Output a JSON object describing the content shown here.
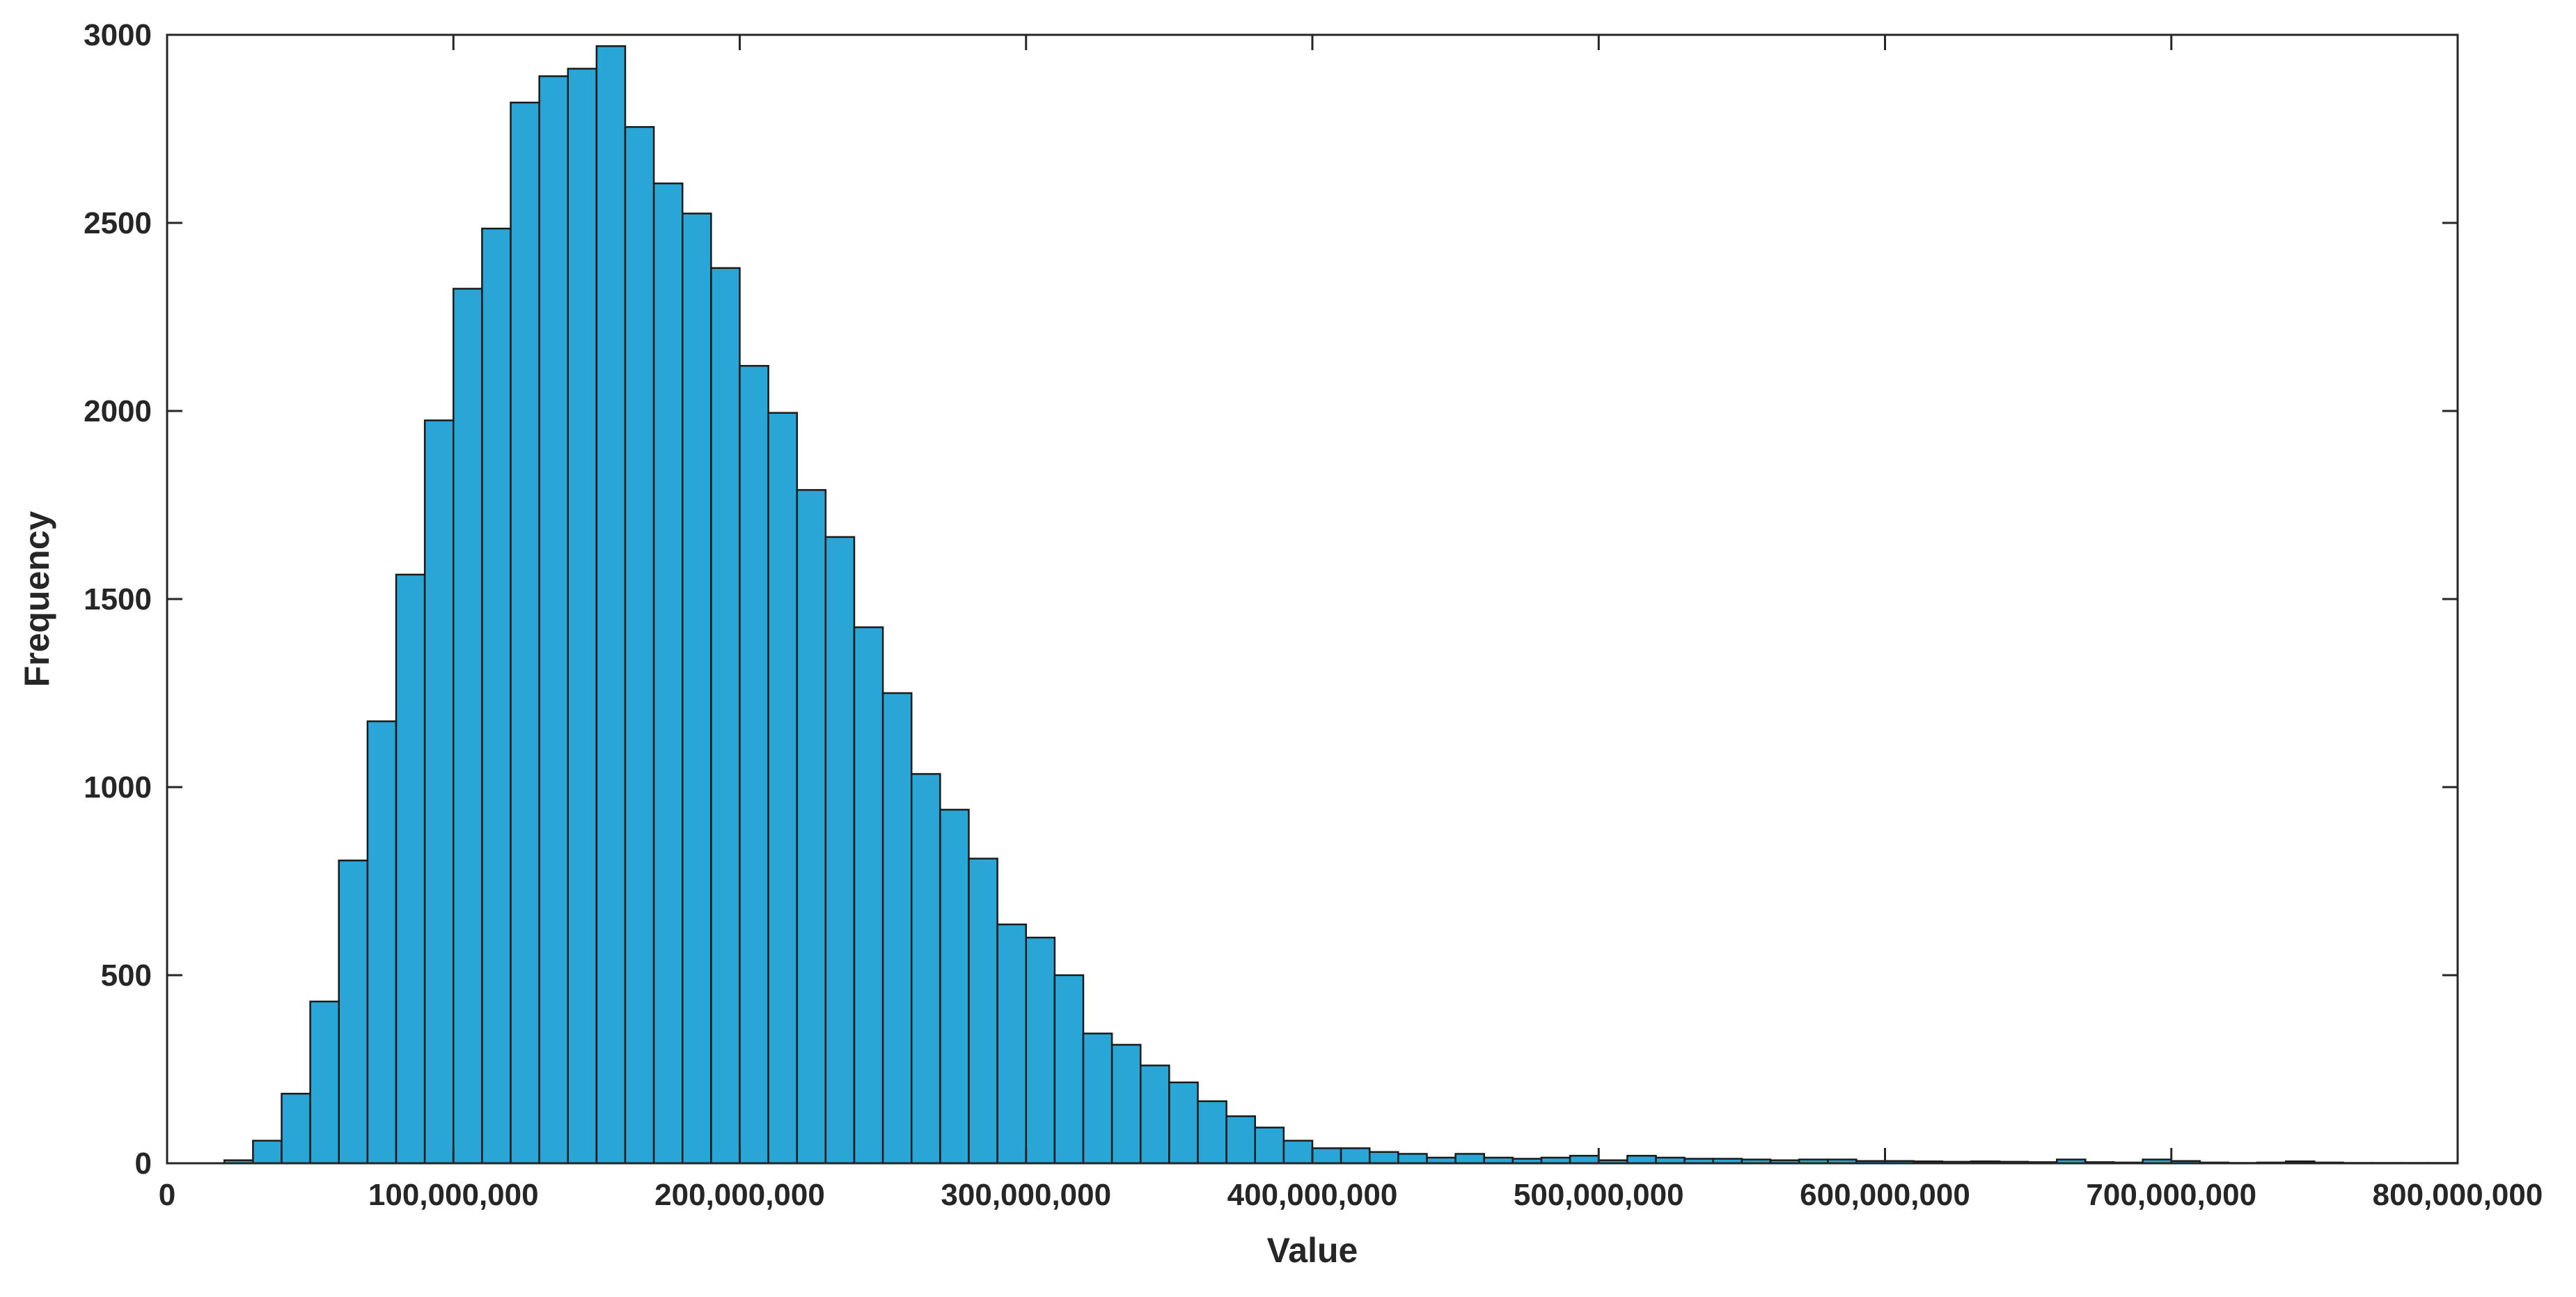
{
  "chart_data": {
    "type": "histogram",
    "title": "",
    "xlabel": "Value",
    "ylabel": "Frequency",
    "xlim": [
      0,
      800000000
    ],
    "ylim": [
      0,
      3000
    ],
    "x_ticks": [
      0,
      100000000,
      200000000,
      300000000,
      400000000,
      500000000,
      600000000,
      700000000,
      800000000
    ],
    "x_tick_labels": [
      "0",
      "100,000,000",
      "200,000,000",
      "300,000,000",
      "400,000,000",
      "500,000,000",
      "600,000,000",
      "700,000,000",
      "800,000,000"
    ],
    "y_ticks": [
      0,
      500,
      1000,
      1500,
      2000,
      2500,
      3000
    ],
    "y_tick_labels": [
      "0",
      "500",
      "1000",
      "1500",
      "2000",
      "2500",
      "3000"
    ],
    "bin_start": 20000000,
    "bin_width": 10000000,
    "bar_color": "#2aa6d6",
    "edge_color": "#1a1a1a",
    "grid": false,
    "counts": [
      8,
      60,
      185,
      430,
      805,
      1175,
      1565,
      1975,
      2325,
      2485,
      2820,
      2890,
      2910,
      2970,
      2755,
      2605,
      2525,
      2380,
      2120,
      1995,
      1790,
      1665,
      1425,
      1250,
      1035,
      940,
      810,
      635,
      600,
      500,
      345,
      315,
      260,
      215,
      165,
      125,
      95,
      60,
      40,
      40,
      30,
      25,
      15,
      25,
      15,
      12,
      15,
      20,
      8,
      20,
      15,
      12,
      12,
      10,
      8,
      10,
      10,
      6,
      6,
      5,
      4,
      5,
      4,
      3,
      10,
      3,
      2,
      10,
      6,
      2,
      1,
      2,
      5,
      2,
      1,
      1,
      1,
      1
    ]
  }
}
